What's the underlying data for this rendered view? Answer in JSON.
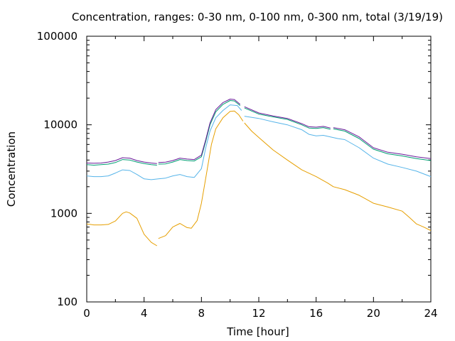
{
  "chart_data": {
    "type": "line",
    "title": "Concentration, ranges: 0-30 nm, 0-100 nm, 0-300 nm, total (3/19/19)",
    "xlabel": "Time [hour]",
    "ylabel": "Concentration",
    "xlim": [
      0,
      24
    ],
    "ylim": [
      100,
      100000
    ],
    "yscale": "log",
    "grid": false,
    "legend": "none",
    "x_ticks": [
      0,
      4,
      8,
      12,
      16,
      20,
      24
    ],
    "y_ticks": [
      100,
      1000,
      10000,
      100000
    ],
    "series": [
      {
        "color": "#E69F00",
        "points": [
          [
            0.0,
            760
          ],
          [
            0.5,
            740
          ],
          [
            1.0,
            740
          ],
          [
            1.5,
            750
          ],
          [
            2.0,
            820
          ],
          [
            2.5,
            1000
          ],
          [
            2.75,
            1040
          ],
          [
            3.0,
            1010
          ],
          [
            3.5,
            880
          ],
          [
            4.0,
            580
          ],
          [
            4.5,
            470
          ],
          [
            4.9,
            430
          ],
          [
            null,
            null
          ],
          [
            5.0,
            520
          ],
          [
            5.5,
            560
          ],
          [
            6.0,
            700
          ],
          [
            6.5,
            770
          ],
          [
            7.0,
            690
          ],
          [
            7.3,
            680
          ],
          [
            7.7,
            830
          ],
          [
            8.0,
            1300
          ],
          [
            8.3,
            2500
          ],
          [
            8.7,
            6000
          ],
          [
            9.0,
            9000
          ],
          [
            9.5,
            12000
          ],
          [
            10.0,
            14200
          ],
          [
            10.3,
            14300
          ],
          [
            10.6,
            13000
          ],
          [
            10.9,
            11000
          ],
          [
            null,
            null
          ],
          [
            11.0,
            10500
          ],
          [
            11.5,
            8500
          ],
          [
            12.0,
            7200
          ],
          [
            13.0,
            5200
          ],
          [
            14.0,
            4000
          ],
          [
            15.0,
            3100
          ],
          [
            16.0,
            2600
          ],
          [
            16.8,
            2200
          ],
          [
            17.2,
            2000
          ],
          [
            18.0,
            1850
          ],
          [
            19.0,
            1600
          ],
          [
            20.0,
            1300
          ],
          [
            21.0,
            1180
          ],
          [
            22.0,
            1060
          ],
          [
            22.5,
            900
          ],
          [
            23.0,
            760
          ],
          [
            23.5,
            700
          ],
          [
            24.0,
            640
          ]
        ]
      },
      {
        "color": "#56B4E9",
        "points": [
          [
            0.0,
            2650
          ],
          [
            0.5,
            2600
          ],
          [
            1.0,
            2600
          ],
          [
            1.5,
            2650
          ],
          [
            2.0,
            2850
          ],
          [
            2.5,
            3100
          ],
          [
            3.0,
            3050
          ],
          [
            3.5,
            2750
          ],
          [
            4.0,
            2450
          ],
          [
            4.5,
            2400
          ],
          [
            5.0,
            2450
          ],
          [
            5.5,
            2500
          ],
          [
            6.0,
            2650
          ],
          [
            6.5,
            2750
          ],
          [
            7.0,
            2600
          ],
          [
            7.5,
            2550
          ],
          [
            8.0,
            3200
          ],
          [
            8.3,
            5500
          ],
          [
            8.6,
            8500
          ],
          [
            9.0,
            12000
          ],
          [
            9.5,
            14500
          ],
          [
            10.0,
            16800
          ],
          [
            10.5,
            16500
          ],
          [
            10.8,
            14500
          ],
          [
            null,
            null
          ],
          [
            11.0,
            12500
          ],
          [
            12.0,
            11800
          ],
          [
            13.0,
            10800
          ],
          [
            14.0,
            10000
          ],
          [
            15.0,
            8800
          ],
          [
            15.5,
            7800
          ],
          [
            16.0,
            7500
          ],
          [
            16.5,
            7600
          ],
          [
            17.0,
            7300
          ],
          [
            17.5,
            7000
          ],
          [
            18.0,
            6800
          ],
          [
            19.0,
            5500
          ],
          [
            20.0,
            4200
          ],
          [
            21.0,
            3600
          ],
          [
            22.0,
            3300
          ],
          [
            23.0,
            3000
          ],
          [
            24.0,
            2600
          ]
        ]
      },
      {
        "color": "#009E73",
        "points": [
          [
            0.0,
            3550
          ],
          [
            0.5,
            3500
          ],
          [
            1.0,
            3550
          ],
          [
            1.5,
            3600
          ],
          [
            2.0,
            3750
          ],
          [
            2.5,
            4050
          ],
          [
            3.0,
            4000
          ],
          [
            3.5,
            3800
          ],
          [
            4.0,
            3650
          ],
          [
            4.5,
            3550
          ],
          [
            4.9,
            3500
          ],
          [
            null,
            null
          ],
          [
            5.0,
            3600
          ],
          [
            5.5,
            3620
          ],
          [
            6.0,
            3800
          ],
          [
            6.5,
            4050
          ],
          [
            7.0,
            3950
          ],
          [
            7.5,
            3900
          ],
          [
            8.0,
            4350
          ],
          [
            8.3,
            6500
          ],
          [
            8.6,
            10000
          ],
          [
            9.0,
            14000
          ],
          [
            9.5,
            17000
          ],
          [
            10.0,
            18800
          ],
          [
            10.3,
            18600
          ],
          [
            10.7,
            16500
          ],
          [
            null,
            null
          ],
          [
            11.0,
            15500
          ],
          [
            12.0,
            13200
          ],
          [
            13.0,
            12300
          ],
          [
            14.0,
            11500
          ],
          [
            15.0,
            10000
          ],
          [
            15.5,
            9200
          ],
          [
            16.0,
            9100
          ],
          [
            16.5,
            9300
          ],
          [
            17.0,
            8900
          ],
          [
            null,
            null
          ],
          [
            17.2,
            9000
          ],
          [
            18.0,
            8500
          ],
          [
            19.0,
            7000
          ],
          [
            20.0,
            5300
          ],
          [
            21.0,
            4700
          ],
          [
            22.0,
            4450
          ],
          [
            23.0,
            4150
          ],
          [
            24.0,
            3950
          ]
        ]
      },
      {
        "color": "#6A1B9A",
        "points": [
          [
            0.0,
            3700
          ],
          [
            0.5,
            3680
          ],
          [
            1.0,
            3700
          ],
          [
            1.5,
            3800
          ],
          [
            2.0,
            3950
          ],
          [
            2.5,
            4250
          ],
          [
            3.0,
            4200
          ],
          [
            3.5,
            3950
          ],
          [
            4.0,
            3800
          ],
          [
            4.5,
            3700
          ],
          [
            4.9,
            3650
          ],
          [
            null,
            null
          ],
          [
            5.0,
            3750
          ],
          [
            5.5,
            3780
          ],
          [
            6.0,
            3950
          ],
          [
            6.5,
            4200
          ],
          [
            7.0,
            4100
          ],
          [
            7.5,
            4050
          ],
          [
            8.0,
            4550
          ],
          [
            8.3,
            6800
          ],
          [
            8.6,
            10500
          ],
          [
            9.0,
            14800
          ],
          [
            9.5,
            17800
          ],
          [
            10.0,
            19500
          ],
          [
            10.3,
            19300
          ],
          [
            10.7,
            17000
          ],
          [
            null,
            null
          ],
          [
            11.0,
            16000
          ],
          [
            12.0,
            13600
          ],
          [
            13.0,
            12600
          ],
          [
            14.0,
            11800
          ],
          [
            15.0,
            10300
          ],
          [
            15.5,
            9500
          ],
          [
            16.0,
            9400
          ],
          [
            16.5,
            9600
          ],
          [
            17.0,
            9200
          ],
          [
            null,
            null
          ],
          [
            17.2,
            9300
          ],
          [
            18.0,
            8800
          ],
          [
            19.0,
            7300
          ],
          [
            20.0,
            5500
          ],
          [
            21.0,
            4900
          ],
          [
            22.0,
            4650
          ],
          [
            23.0,
            4350
          ],
          [
            24.0,
            4150
          ]
        ]
      }
    ]
  }
}
